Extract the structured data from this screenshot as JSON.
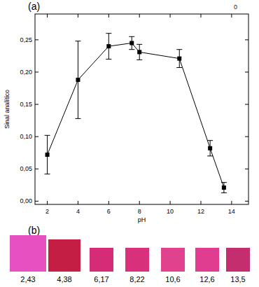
{
  "chart_data": {
    "type": "line",
    "panel_label": "(a)",
    "x_label": "pH",
    "y_label": "Sinal analítico",
    "x": [
      2,
      4,
      6,
      7.5,
      8,
      10.6,
      12.6,
      13.5
    ],
    "series": [
      {
        "color": "#000000",
        "marker": "square",
        "values": [
          0.072,
          0.188,
          0.24,
          0.245,
          0.231,
          0.221,
          0.082,
          0.021
        ],
        "errors": [
          0.03,
          0.06,
          0.02,
          0.01,
          0.012,
          0.014,
          0.012,
          0.008
        ]
      }
    ],
    "xlim": [
      1.2,
      15.1
    ],
    "ylim": [
      -0.005,
      0.29
    ],
    "xticks": [
      2,
      4,
      6,
      8,
      10,
      12,
      14
    ],
    "yticks": [
      {
        "value": 0,
        "label": "0,00"
      },
      {
        "value": 0.05,
        "label": "0,05"
      },
      {
        "value": 0.1,
        "label": "0,10"
      },
      {
        "value": 0.15,
        "label": "0,15"
      },
      {
        "value": 0.2,
        "label": "0,20"
      },
      {
        "value": 0.25,
        "label": "0,25"
      }
    ],
    "annotations": [
      "0"
    ]
  },
  "swatch_panel": {
    "panel_label": "(b)",
    "swatches": [
      {
        "label": "2,43",
        "color": "#e650c0"
      },
      {
        "label": "4,38",
        "color": "#c41e44"
      },
      {
        "label": "6,17",
        "color": "#d62c78"
      },
      {
        "label": "8,22",
        "color": "#d8307a"
      },
      {
        "label": "10,6",
        "color": "#e0428e"
      },
      {
        "label": "12,6",
        "color": "#e03c90"
      },
      {
        "label": "13,5",
        "color": "#c42e6e"
      }
    ]
  }
}
